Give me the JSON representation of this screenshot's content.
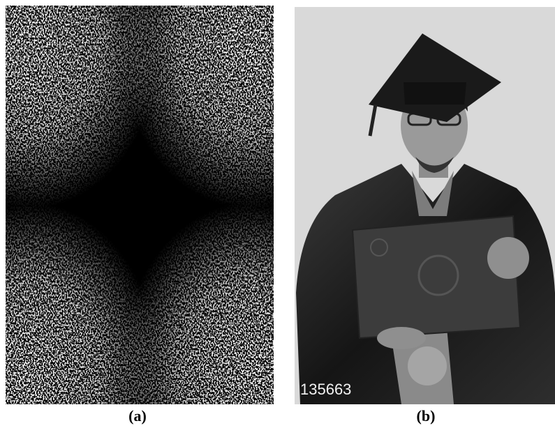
{
  "panels": [
    {
      "label": "(a)"
    },
    {
      "label": "(b)",
      "watermark": "135663"
    }
  ]
}
